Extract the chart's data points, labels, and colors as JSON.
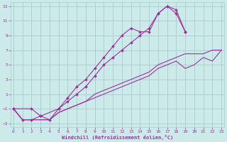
{
  "xlabel": "Windchill (Refroidissement éolien,°C)",
  "background_color": "#cceaea",
  "grid_color": "#aacccc",
  "line_color": "#993399",
  "x_values": [
    0,
    1,
    2,
    3,
    4,
    5,
    6,
    7,
    8,
    9,
    10,
    11,
    12,
    13,
    14,
    15,
    16,
    17,
    18,
    19,
    20,
    21,
    22,
    23
  ],
  "curve1_x": [
    0,
    1,
    2,
    3,
    4,
    5,
    6,
    7,
    8,
    9,
    10,
    11,
    12,
    13,
    14,
    15,
    16,
    17,
    18,
    19
  ],
  "curve1_y": [
    -1,
    -2.5,
    -2.5,
    -2,
    -2.5,
    -1,
    0.5,
    2,
    3,
    4.5,
    6,
    7.5,
    9,
    10,
    9.5,
    9.5,
    12,
    13,
    12.5,
    9.5
  ],
  "curve2_x": [
    0,
    2,
    3,
    5,
    6,
    7,
    8,
    9,
    10,
    11,
    12,
    13,
    14,
    15,
    16,
    17,
    18,
    19
  ],
  "curve2_y": [
    -1,
    -1,
    -2,
    -1,
    0,
    1,
    2,
    3.5,
    5,
    6,
    7,
    8,
    9,
    10,
    12,
    13,
    12,
    9.5
  ],
  "line1_x": [
    0,
    1,
    2,
    3,
    4,
    5,
    6,
    7,
    8,
    9,
    10,
    11,
    12,
    13,
    14,
    15,
    16,
    17,
    18,
    19,
    20,
    21,
    22,
    23
  ],
  "line1_y": [
    -1,
    -2.5,
    -2.5,
    -2.5,
    -2.5,
    -1.5,
    -1,
    -0.5,
    0,
    1,
    1.5,
    2,
    2.5,
    3,
    3.5,
    4,
    5,
    5.5,
    6,
    6.5,
    6.5,
    6.5,
    7,
    7
  ],
  "line2_x": [
    0,
    1,
    2,
    3,
    4,
    5,
    6,
    7,
    8,
    9,
    10,
    11,
    12,
    13,
    14,
    15,
    16,
    17,
    18,
    19,
    20,
    21,
    22,
    23
  ],
  "line2_y": [
    -1,
    -2.5,
    -2.5,
    -2.5,
    -2.5,
    -1.5,
    -1,
    -0.5,
    0,
    0.5,
    1,
    1.5,
    2,
    2.5,
    3,
    3.5,
    4.5,
    5,
    5.5,
    4.5,
    5,
    6,
    5.5,
    7
  ],
  "xlim": [
    -0.3,
    23.3
  ],
  "ylim": [
    -3.5,
    13.5
  ],
  "xticks": [
    0,
    1,
    2,
    3,
    4,
    5,
    6,
    7,
    8,
    9,
    10,
    11,
    12,
    13,
    14,
    15,
    16,
    17,
    18,
    19,
    20,
    21,
    22,
    23
  ],
  "yticks": [
    -3,
    -1,
    1,
    3,
    5,
    7,
    9,
    11,
    13
  ]
}
